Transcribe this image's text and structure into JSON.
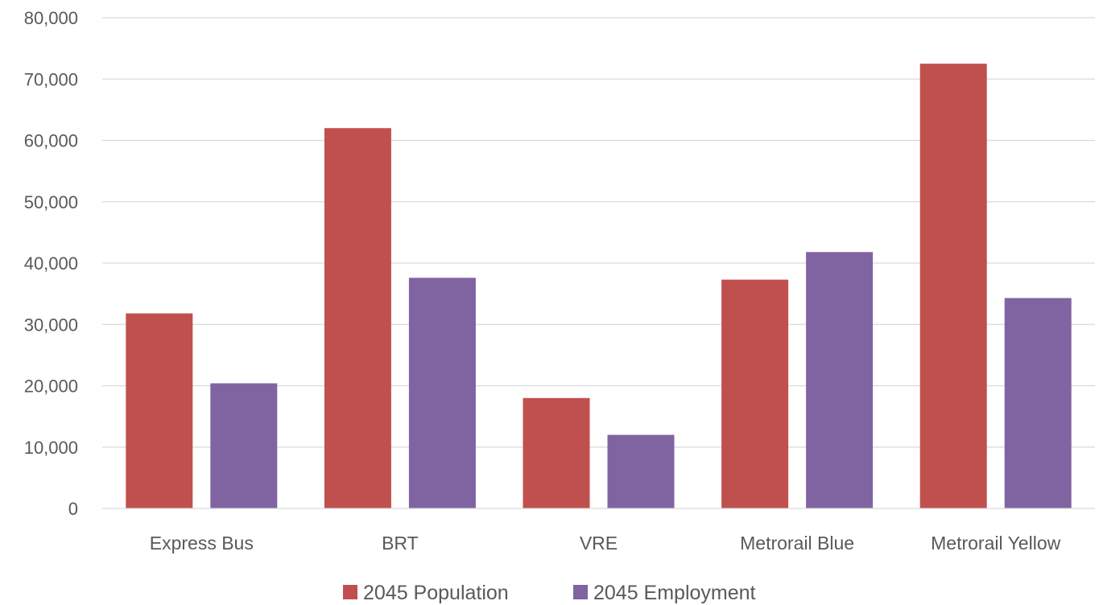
{
  "chart_data": {
    "type": "bar",
    "title": "",
    "xlabel": "",
    "ylabel": "",
    "categories": [
      "Express Bus",
      "BRT",
      "VRE",
      "Metrorail Blue",
      "Metrorail Yellow"
    ],
    "series": [
      {
        "name": "2045 Population",
        "color": "#c0504d",
        "values": [
          31800,
          62000,
          18000,
          37300,
          72500
        ]
      },
      {
        "name": "2045 Employment",
        "color": "#8064a2",
        "values": [
          20400,
          37600,
          12000,
          41800,
          34300
        ]
      }
    ],
    "ylim": [
      0,
      80000
    ],
    "yticks": [
      "0",
      "10,000",
      "20,000",
      "30,000",
      "40,000",
      "50,000",
      "60,000",
      "70,000",
      "80,000"
    ],
    "grid": true,
    "legend_position": "bottom"
  }
}
